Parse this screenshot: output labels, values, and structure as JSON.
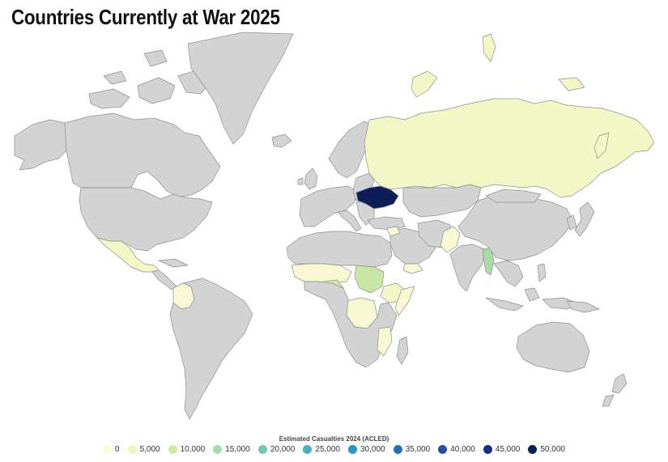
{
  "title": "Countries Currently at War 2025",
  "legend": {
    "title": "Estimated Casualties 2024 (ACLED)",
    "items": [
      {
        "label": "0",
        "color": "#fbfbd6"
      },
      {
        "label": "5,000",
        "color": "#eef6c0"
      },
      {
        "label": "10,000",
        "color": "#cfeaa6"
      },
      {
        "label": "15,000",
        "color": "#a7dcb3"
      },
      {
        "label": "20,000",
        "color": "#76c7b6"
      },
      {
        "label": "25,000",
        "color": "#45b2c4"
      },
      {
        "label": "30,000",
        "color": "#2897c0"
      },
      {
        "label": "35,000",
        "color": "#2472b2"
      },
      {
        "label": "40,000",
        "color": "#2350a1"
      },
      {
        "label": "45,000",
        "color": "#1d2f85"
      },
      {
        "label": "50,000",
        "color": "#0c1d57"
      }
    ]
  },
  "colors": {
    "land_default": "#d3d3d3",
    "ukraine": "#0c1d57",
    "russia": "#f3f7c6",
    "myanmar": "#a9dba6",
    "sudan": "#c7e6a3",
    "nigeria": "#d6eca9",
    "low": "#f8f8d2"
  },
  "war_countries": [
    {
      "name": "Ukraine",
      "color_key": "ukraine"
    },
    {
      "name": "Russia",
      "color_key": "russia"
    },
    {
      "name": "Myanmar",
      "color_key": "myanmar"
    },
    {
      "name": "Sudan",
      "color_key": "sudan"
    },
    {
      "name": "Nigeria",
      "color_key": "nigeria"
    },
    {
      "name": "Mexico",
      "color_key": "russia"
    },
    {
      "name": "Colombia",
      "color_key": "low"
    },
    {
      "name": "Sahel",
      "color_key": "low"
    },
    {
      "name": "Ethiopia",
      "color_key": "russia"
    },
    {
      "name": "DR Congo",
      "color_key": "low"
    },
    {
      "name": "Mozambique",
      "color_key": "low"
    },
    {
      "name": "Pakistan",
      "color_key": "low"
    },
    {
      "name": "Somalia",
      "color_key": "low"
    },
    {
      "name": "Yemen",
      "color_key": "low"
    },
    {
      "name": "Syria",
      "color_key": "low"
    },
    {
      "name": "Israel/Palestine",
      "color_key": "low"
    }
  ]
}
